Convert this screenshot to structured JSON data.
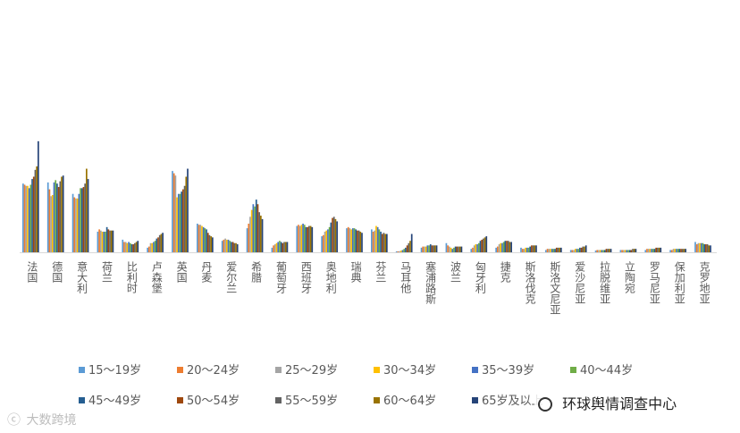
{
  "chart_data": {
    "type": "bar",
    "title": "",
    "xlabel": "",
    "ylabel": "",
    "grid": false,
    "legend_position": "bottom",
    "ylim": [
      0,
      200
    ],
    "categories": [
      "法国",
      "德国",
      "意大利",
      "荷兰",
      "比利时",
      "卢森堡",
      "英国",
      "丹麦",
      "爱尔兰",
      "希腊",
      "葡萄牙",
      "西班牙",
      "奥地利",
      "瑞典",
      "芬兰",
      "马耳他",
      "塞浦路斯",
      "波兰",
      "匈牙利",
      "捷克",
      "斯洛伐克",
      "斯洛文尼亚",
      "爱沙尼亚",
      "拉脱维亚",
      "立陶宛",
      "罗马尼亚",
      "保加利亚",
      "克罗地亚"
    ],
    "series": [
      {
        "name": "15～19岁",
        "color": "#5b9bd5",
        "values": [
          60,
          61,
          51,
          18,
          11,
          4,
          71,
          25,
          10,
          21,
          4,
          23,
          14,
          21,
          20,
          0.8,
          4,
          8,
          3,
          4,
          4,
          2,
          2,
          1.5,
          2,
          2,
          2,
          9
        ]
      },
      {
        "name": "20～24岁",
        "color": "#ed7d31",
        "values": [
          59,
          55,
          48,
          20,
          9,
          5,
          69,
          24,
          11,
          25,
          6,
          24,
          15,
          22,
          18,
          0.8,
          5,
          6,
          4,
          5,
          3,
          3,
          2,
          2,
          2,
          3,
          2,
          7
        ]
      },
      {
        "name": "25～29岁",
        "color": "#a5a5a5",
        "values": [
          58,
          49,
          47,
          19,
          9,
          8,
          67,
          24,
          12,
          31,
          7,
          23,
          18,
          21,
          19,
          1,
          5,
          5,
          6,
          7,
          3,
          3,
          2,
          2,
          2,
          3,
          3,
          8
        ]
      },
      {
        "name": "30～34岁",
        "color": "#ffc000",
        "values": [
          58,
          50,
          47,
          18,
          8,
          8,
          48,
          23,
          11,
          37,
          8,
          24,
          19,
          20,
          23,
          1.5,
          5,
          4,
          7,
          8,
          4,
          3,
          3,
          2,
          2,
          3,
          3,
          8
        ]
      },
      {
        "name": "35～39岁",
        "color": "#4472c4",
        "values": [
          56,
          61,
          51,
          18,
          9,
          9,
          51,
          22,
          11,
          42,
          9,
          25,
          20,
          21,
          22,
          2,
          6,
          3,
          7,
          8,
          4,
          3,
          3,
          2,
          2,
          3,
          3,
          8
        ]
      },
      {
        "name": "40～44岁",
        "color": "#70ad47",
        "values": [
          59,
          63,
          56,
          18,
          8,
          10,
          51,
          21,
          10,
          40,
          10,
          24,
          22,
          21,
          20,
          3,
          6,
          4,
          8,
          9,
          4,
          3,
          3,
          2,
          2,
          3,
          3,
          8
        ]
      },
      {
        "name": "45～49岁",
        "color": "#255e91",
        "values": [
          64,
          60,
          56,
          22,
          7,
          12,
          53,
          20,
          9,
          46,
          9,
          22,
          26,
          20,
          18,
          4,
          7,
          5,
          10,
          10,
          5,
          3,
          4,
          2,
          2,
          3,
          3,
          7
        ]
      },
      {
        "name": "50～54岁",
        "color": "#9e480e",
        "values": [
          66,
          57,
          57,
          20,
          7,
          13,
          55,
          17,
          9,
          42,
          8,
          22,
          30,
          19,
          16,
          6,
          6,
          5,
          11,
          10,
          6,
          4,
          4,
          3,
          2,
          4,
          3,
          7
        ]
      },
      {
        "name": "55～59岁",
        "color": "#636363",
        "values": [
          72,
          62,
          60,
          19,
          8,
          15,
          58,
          15,
          8,
          35,
          9,
          23,
          31,
          19,
          17,
          8,
          6,
          5,
          12,
          10,
          6,
          4,
          5,
          3,
          3,
          4,
          3,
          7
        ]
      },
      {
        "name": "60～64岁",
        "color": "#997300",
        "values": [
          75,
          66,
          73,
          19,
          9,
          16,
          66,
          14,
          8,
          32,
          9,
          23,
          29,
          18,
          16,
          10,
          6,
          5,
          13,
          9,
          6,
          4,
          5,
          3,
          3,
          4,
          3,
          6
        ]
      },
      {
        "name": "65岁及以上",
        "color": "#264478",
        "values": [
          97,
          67,
          64,
          19,
          10,
          17,
          73,
          13,
          7,
          29,
          9,
          22,
          27,
          17,
          16,
          16,
          6,
          5,
          14,
          9,
          6,
          4,
          6,
          3,
          3,
          4,
          3,
          6
        ]
      }
    ]
  },
  "watermark_left": {
    "icon": "weibo-style-icon",
    "text": "大数跨境"
  },
  "watermark_right": {
    "icon": "wechat-style-icon",
    "text": "环球舆情调查中心"
  }
}
